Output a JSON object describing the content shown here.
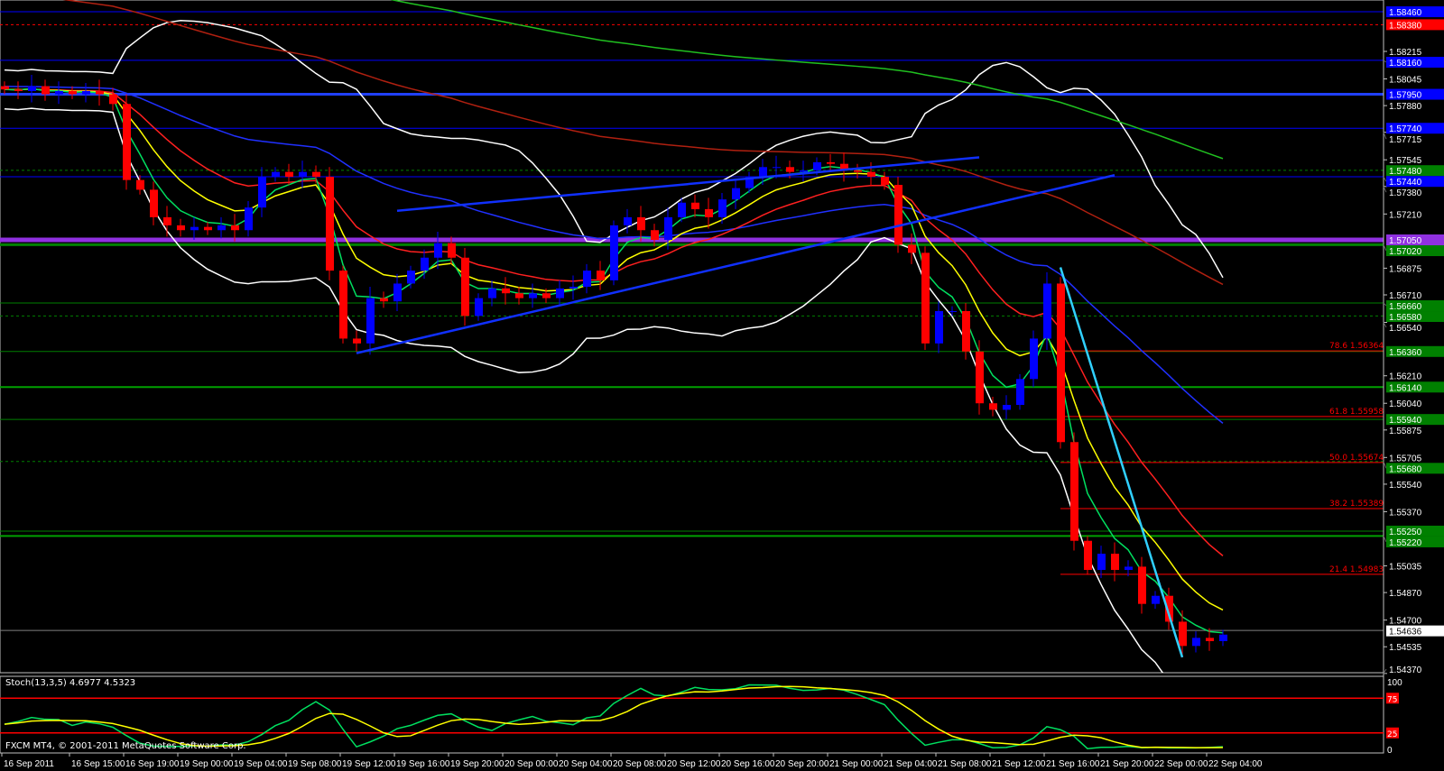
{
  "window": {
    "copyright": "FXCM MT4, © 2001-2011 MetaQuotes Software Corp."
  },
  "colors": {
    "bg": "#000000",
    "bull": "#0000ff",
    "bear": "#ff0000",
    "axis": "#c0c0c0",
    "bid": "#808080",
    "ema_fast": "#00e060",
    "ema_mid": "#ffff00",
    "ema_slow": "#ff2020",
    "ma_blue": "#2030ff",
    "ma_darkred": "#b02010",
    "ma_green": "#20c020",
    "bands": "#ffffff",
    "trend": "#1030ff",
    "trend_cyan": "#30d0ff",
    "fib": "#ff0000"
  },
  "chart_data": [
    {
      "type": "candlestick",
      "timeframe_note": "",
      "price_ticks": [
        "1.58215",
        "1.58045",
        "1.57880",
        "1.57715",
        "1.57545",
        "1.57380",
        "1.57210",
        "1.56875",
        "1.56710",
        "1.56540",
        "1.56210",
        "1.56040",
        "1.55875",
        "1.55705",
        "1.55540",
        "1.55370",
        "1.55035",
        "1.54870",
        "1.54700",
        "1.54535",
        "1.54370"
      ],
      "ylim": [
        1.5437,
        1.5854
      ],
      "time_labels": [
        "16 Sep 2011",
        "16 Sep 15:00",
        "16 Sep 19:00",
        "19 Sep 00:00",
        "19 Sep 04:00",
        "19 Sep 08:00",
        "19 Sep 12:00",
        "19 Sep 16:00",
        "19 Sep 20:00",
        "20 Sep 00:00",
        "20 Sep 04:00",
        "20 Sep 08:00",
        "20 Sep 12:00",
        "20 Sep 16:00",
        "20 Sep 20:00",
        "21 Sep 00:00",
        "21 Sep 04:00",
        "21 Sep 08:00",
        "21 Sep 12:00",
        "21 Sep 16:00",
        "21 Sep 20:00",
        "22 Sep 00:00",
        "22 Sep 04:00"
      ],
      "first_bar": "16 Sep 11:00",
      "closes": [
        1.5798,
        1.5797,
        1.58,
        1.5795,
        1.5797,
        1.5795,
        1.5797,
        1.5795,
        1.5789,
        1.5742,
        1.5736,
        1.5719,
        1.5714,
        1.5711,
        1.5713,
        1.5711,
        1.5714,
        1.5711,
        1.5725,
        1.5744,
        1.5747,
        1.5744,
        1.5747,
        1.5744,
        1.5686,
        1.5644,
        1.5641,
        1.5669,
        1.5667,
        1.5678,
        1.5686,
        1.5694,
        1.5703,
        1.5694,
        1.5658,
        1.5669,
        1.5675,
        1.5672,
        1.5669,
        1.5672,
        1.5669,
        1.5675,
        1.5676,
        1.5686,
        1.568,
        1.5714,
        1.5719,
        1.5711,
        1.5705,
        1.5719,
        1.5728,
        1.5724,
        1.5719,
        1.573,
        1.5737,
        1.5744,
        1.575,
        1.575,
        1.5747,
        1.5748,
        1.5753,
        1.5752,
        1.5748,
        1.5747,
        1.5744,
        1.5739,
        1.5702,
        1.5697,
        1.5641,
        1.5661,
        1.5661,
        1.5636,
        1.5604,
        1.56,
        1.5603,
        1.5619,
        1.5644,
        1.5678,
        1.558,
        1.5519,
        1.5501,
        1.5511,
        1.5501,
        1.5503,
        1.548,
        1.5485,
        1.5469,
        1.5454,
        1.5459,
        1.5457,
        1.5461
      ],
      "bid": {
        "price": 1.54636,
        "label": "1.54636"
      },
      "horizontal_lines": [
        {
          "price": 1.5846,
          "label": "1.58460",
          "color": "#0000ff",
          "style": "solid",
          "width": 1
        },
        {
          "price": 1.5838,
          "label": "1.58380",
          "color": "#ff0000",
          "style": "dashed",
          "width": 1
        },
        {
          "price": 1.5816,
          "label": "1.58160",
          "color": "#0000ff",
          "style": "solid",
          "width": 1
        },
        {
          "price": 1.5795,
          "label": "1.57950",
          "color": "#2040ff",
          "style": "solid",
          "width": 3
        },
        {
          "price": 1.5774,
          "label": "1.57740",
          "color": "#0000ff",
          "style": "solid",
          "width": 1
        },
        {
          "price": 1.5748,
          "label": "1.57480",
          "color": "#008000",
          "style": "dashed",
          "width": 1
        },
        {
          "price": 1.5744,
          "label": "1.57440",
          "color": "#0000ff",
          "style": "solid",
          "width": 1
        },
        {
          "price": 1.5705,
          "label": "1.57050",
          "color": "#9030e0",
          "style": "solid",
          "width": 5
        },
        {
          "price": 1.5702,
          "label": "1.57020",
          "color": "#008000",
          "style": "solid",
          "width": 3
        },
        {
          "price": 1.5666,
          "label": "1.56660",
          "color": "#008000",
          "style": "solid",
          "width": 1
        },
        {
          "price": 1.5658,
          "label": "1.56580",
          "color": "#008000",
          "style": "dashed",
          "width": 1
        },
        {
          "price": 1.5636,
          "label": "1.56360",
          "color": "#008000",
          "style": "solid",
          "width": 1
        },
        {
          "price": 1.5614,
          "label": "1.56140",
          "color": "#00a000",
          "style": "solid",
          "width": 2
        },
        {
          "price": 1.5594,
          "label": "1.55940",
          "color": "#008000",
          "style": "solid",
          "width": 1
        },
        {
          "price": 1.5568,
          "label": "1.55680",
          "color": "#008000",
          "style": "dashed",
          "width": 1
        },
        {
          "price": 1.5525,
          "label": "1.55250",
          "color": "#008000",
          "style": "solid",
          "width": 1
        },
        {
          "price": 1.5522,
          "label": "1.55220",
          "color": "#00a000",
          "style": "solid",
          "width": 2
        }
      ],
      "fibonacci": {
        "start": "21 Sep 18:00",
        "levels": [
          {
            "level": "78.6",
            "price": 1.56364,
            "label": "1.56364"
          },
          {
            "level": "61.8",
            "price": 1.55958,
            "label": "1.55958"
          },
          {
            "level": "50.0",
            "price": 1.55674,
            "label": "1.55674"
          },
          {
            "level": "38.2",
            "price": 1.55389,
            "label": "1.55389"
          },
          {
            "level": "21.4",
            "price": 1.54983,
            "label": "1.54983"
          }
        ]
      },
      "trendlines": [
        {
          "from": {
            "t": "19 Sep 14:00",
            "p": 1.5635
          },
          "to": {
            "t": "21 Sep 22:00",
            "p": 1.5745
          },
          "color": "#1030ff"
        },
        {
          "from": {
            "t": "19 Sep 17:00",
            "p": 1.5723
          },
          "to": {
            "t": "21 Sep 12:00",
            "p": 1.5756
          },
          "color": "#1030ff"
        },
        {
          "from": {
            "t": "21 Sep 18:00",
            "p": 1.5688
          },
          "to": {
            "t": "22 Sep 03:00",
            "p": 1.5447
          },
          "color": "#30d0ff"
        }
      ],
      "indicators": [
        "EMA fast",
        "EMA mid",
        "EMA slow",
        "MA blue",
        "MA dark red",
        "MA green",
        "Bollinger Bands"
      ]
    },
    {
      "type": "line",
      "name": "Stoch(13,3,5)",
      "title": "Stoch(13,3,5) 4.6977 4.5323",
      "values_printed": [
        "4.6977",
        "4.5323"
      ],
      "ylim": [
        0,
        100
      ],
      "levels": [
        {
          "value": 75,
          "label": "75"
        },
        {
          "value": 25,
          "label": "25"
        }
      ],
      "scale_labels": [
        "100",
        "0"
      ]
    }
  ]
}
